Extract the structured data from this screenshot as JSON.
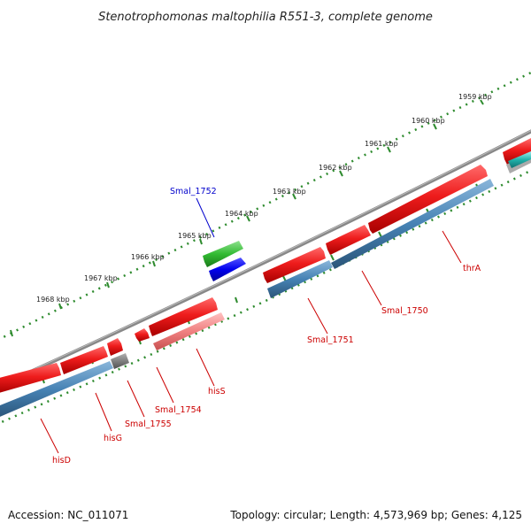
{
  "title": "Stenotrophomonas maltophilia R551-3, complete genome",
  "footer": {
    "accession": "Accession: NC_011071",
    "summary": "Topology: circular; Length: 4,573,969 bp; Genes: 4,125"
  },
  "scale_ticks": [
    {
      "label": "1959 kbp"
    },
    {
      "label": "1960 kbp"
    },
    {
      "label": "1961 kbp"
    },
    {
      "label": "1962 kbp"
    },
    {
      "label": "1963 kbp"
    },
    {
      "label": "1964 kbp"
    },
    {
      "label": "1965 kbp"
    },
    {
      "label": "1966 kbp"
    },
    {
      "label": "1967 kbp"
    },
    {
      "label": "1968 kbp"
    }
  ],
  "gene_labels": [
    {
      "name": "Smal_1752",
      "color": "#0000cc"
    },
    {
      "name": "thrA",
      "color": "#cc0000"
    },
    {
      "name": "Smal_1750",
      "color": "#cc0000"
    },
    {
      "name": "Smal_1751",
      "color": "#cc0000"
    },
    {
      "name": "hisS",
      "color": "#cc0000"
    },
    {
      "name": "Smal_1754",
      "color": "#cc0000"
    },
    {
      "name": "Smal_1755",
      "color": "#cc0000"
    },
    {
      "name": "hisG",
      "color": "#cc0000"
    },
    {
      "name": "hisD",
      "color": "#cc0000"
    }
  ],
  "colors": {
    "cds_forward": "#e41b17",
    "cds_reverse": "#e41b17",
    "gene_track": "#4682b4",
    "rna": "#33aa33",
    "blue_feature": "#0000dd",
    "pseudo": "#707070",
    "light_cds": "#f08080",
    "backbone": "#808080",
    "ticks": "#2e8b2e",
    "cyan": "#20b2aa"
  }
}
